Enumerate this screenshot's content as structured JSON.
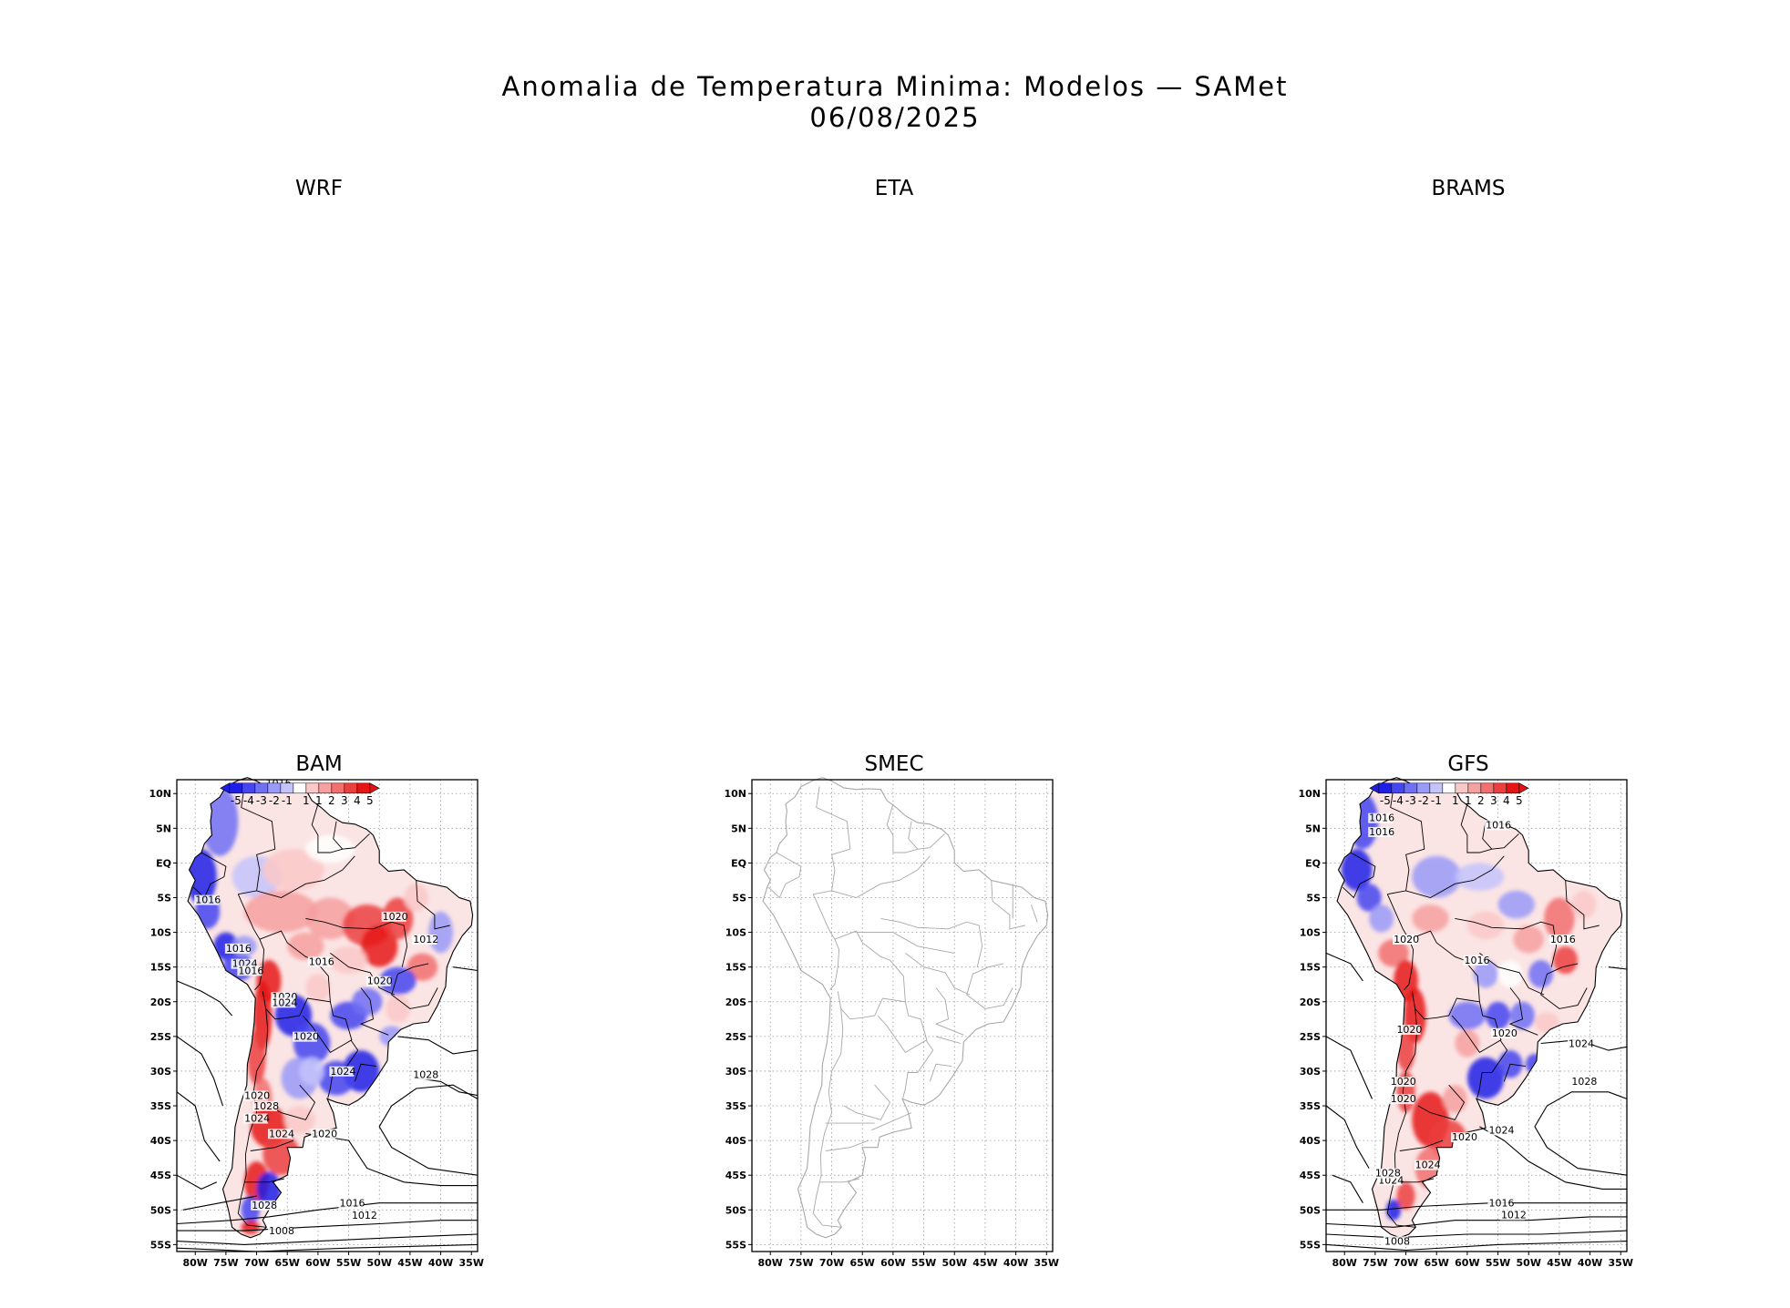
{
  "title": {
    "line1": "Anomalia de Temperatura Minima: Modelos — SAMet",
    "line2": "06/08/2025"
  },
  "panels_top": [
    {
      "label": "WRF"
    },
    {
      "label": "ETA"
    },
    {
      "label": "BRAMS"
    }
  ],
  "panels_bottom": [
    {
      "label": "BAM",
      "has_data": true,
      "has_colorbar": true,
      "isobars": [
        "1016",
        "1020",
        "1012",
        "1016",
        "1024",
        "1016",
        "1016",
        "1016",
        "1020",
        "1020",
        "1024",
        "1020",
        "1024",
        "1028",
        "1020",
        "1028",
        "1024",
        "1024",
        "1020",
        "1028",
        "1016",
        "1012",
        "1008"
      ]
    },
    {
      "label": "SMEC",
      "has_data": false,
      "has_colorbar": false,
      "isobars": []
    },
    {
      "label": "GFS",
      "has_data": true,
      "has_colorbar": true,
      "isobars": [
        "1016",
        "1016",
        "1016",
        "1020",
        "1016",
        "1016",
        "1020",
        "1020",
        "1024",
        "1020",
        "1028",
        "1020",
        "1024",
        "1024",
        "1020",
        "1024",
        "1028",
        "1016",
        "1012",
        "1008"
      ]
    }
  ],
  "axes": {
    "lat_ticks": [
      "10N",
      "5N",
      "EQ",
      "5S",
      "10S",
      "15S",
      "20S",
      "25S",
      "30S",
      "35S",
      "40S",
      "45S",
      "50S",
      "55S"
    ],
    "lon_ticks": [
      "80W",
      "75W",
      "70W",
      "65W",
      "60W",
      "55W",
      "50W",
      "45W",
      "40W",
      "35W"
    ],
    "lat_range": [
      12,
      -56
    ],
    "lon_range": [
      -83,
      -34
    ]
  },
  "colorbar": {
    "labels": [
      "-5",
      "-4",
      "-3",
      "-2",
      "-1",
      "1",
      "1",
      "2",
      "3",
      "4",
      "5"
    ],
    "colors": [
      "#1e1ee8",
      "#4646f0",
      "#7070f5",
      "#9a9af8",
      "#c4c4fb",
      "#ffffff",
      "#fbc8c8",
      "#f7a0a0",
      "#f27070",
      "#ec4040",
      "#e61414"
    ]
  }
}
